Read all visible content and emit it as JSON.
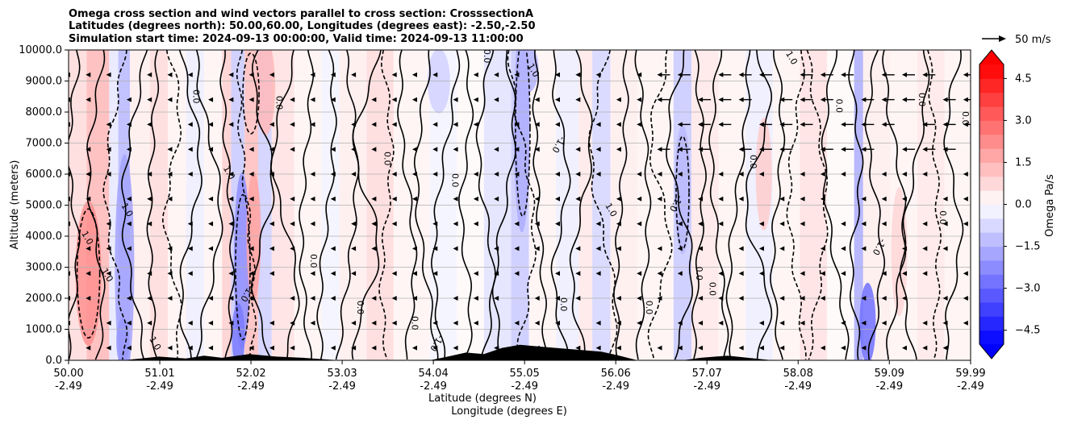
{
  "chart_data": {
    "type": "heatmap",
    "title_lines": [
      "Omega cross section and wind vectors parallel to cross section: CrosssectionA",
      "Latitudes (degrees north): 50.00,60.00, Longitudes (degrees east): -2.50,-2.50",
      "Simulation start time: 2024-09-13 00:00:00, Valid time: 2024-09-13 11:00:00"
    ],
    "ylabel": "Altitude (meters)",
    "xlabel_line1": "Latitude (degrees N)",
    "xlabel_line2": "Longitude (degrees E)",
    "y_ticks": [
      "0.0",
      "1000.0",
      "2000.0",
      "3000.0",
      "4000.0",
      "5000.0",
      "6000.0",
      "7000.0",
      "8000.0",
      "9000.0",
      "10000.0"
    ],
    "ylim": [
      0,
      10000
    ],
    "x_ticks_lat": [
      "50.00",
      "51.01",
      "52.02",
      "53.03",
      "54.04",
      "55.05",
      "56.06",
      "57.07",
      "58.08",
      "59.09",
      "59.99"
    ],
    "x_ticks_lon": [
      "-2.49",
      "-2.49",
      "-2.49",
      "-2.49",
      "-2.49",
      "-2.49",
      "-2.49",
      "-2.49",
      "-2.49",
      "-2.49",
      "-2.49"
    ],
    "xlim": [
      50.0,
      59.99
    ],
    "grid": "horizontal",
    "colorbar": {
      "label": "Omega Pa/s",
      "ticks": [
        "4.5",
        "3.0",
        "1.5",
        "0.0",
        "−1.5",
        "−3.0",
        "−4.5"
      ],
      "range": [
        -5,
        5
      ],
      "extend": "both",
      "colormap": "bwr"
    },
    "quiver_key": "50 m/s",
    "contour_labels": [
      "1.0",
      "0.0",
      "-1.0"
    ],
    "colors": {
      "positive_max": "#ff0000",
      "negative_max": "#0000ff",
      "neutral": "#ffffff",
      "contour": "#000000",
      "terrain": "#000000"
    }
  }
}
